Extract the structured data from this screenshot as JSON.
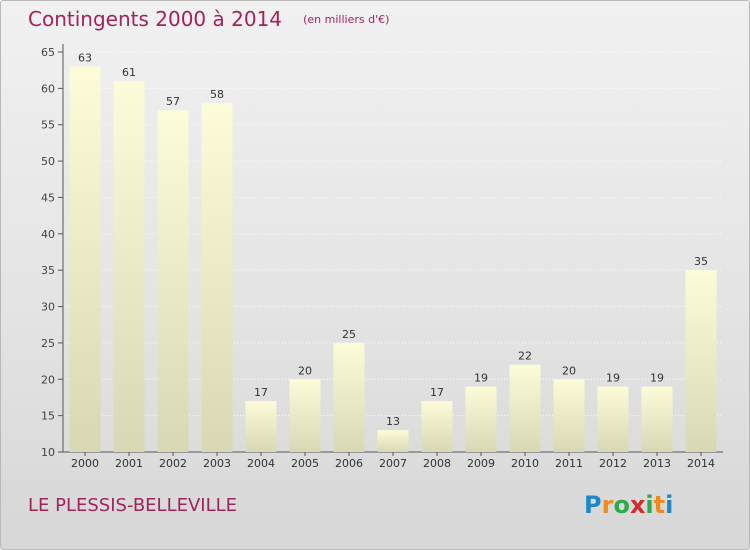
{
  "title": "Contingents 2000 à 2014",
  "subtitle": "(en milliers d'€)",
  "commune": "LE PLESSIS-BELLEVILLE",
  "logo": {
    "letters": [
      "P",
      "r",
      "o",
      "x",
      "i",
      "t",
      "i"
    ]
  },
  "colors": {
    "accent": "#a0245a",
    "bar_top": "#fcfcd9",
    "bar_bottom": "#d8d8b4"
  },
  "chart_data": {
    "type": "bar",
    "categories": [
      "2000",
      "2001",
      "2002",
      "2003",
      "2004",
      "2005",
      "2006",
      "2007",
      "2008",
      "2009",
      "2010",
      "2011",
      "2012",
      "2013",
      "2014"
    ],
    "values": [
      63,
      61,
      57,
      58,
      17,
      20,
      25,
      13,
      17,
      19,
      22,
      20,
      19,
      19,
      35
    ],
    "title": "Contingents 2000 à 2014",
    "ylim": [
      10,
      65
    ],
    "yticks": [
      10,
      15,
      20,
      25,
      30,
      35,
      40,
      45,
      50,
      55,
      60,
      65
    ],
    "grid": true,
    "data_labels": true
  }
}
